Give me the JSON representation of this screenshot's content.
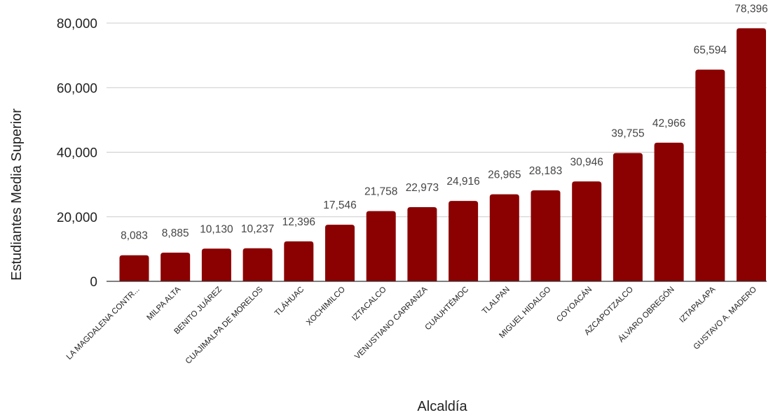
{
  "chart_data": {
    "type": "bar",
    "xlabel": "Alcaldía",
    "ylabel": "Estudiantes Media Superior",
    "ylim": [
      0,
      80000
    ],
    "yticks": [
      0,
      20000,
      40000,
      60000,
      80000
    ],
    "ytick_labels": [
      "0",
      "20,000",
      "40,000",
      "60,000",
      "80,000"
    ],
    "grid": true,
    "bar_color": "#8b0000",
    "categories": [
      "LA MAGDALENA CONTR...",
      "MILPA ALTA",
      "BENITO JUÁREZ",
      "CUAJIMALPA DE MORELOS",
      "TLÁHUAC",
      "XOCHIMILCO",
      "IZTACALCO",
      "VENUSTIANO CARRANZA",
      "CUAUHTÉMOC",
      "TLALPAN",
      "MIGUEL HIDALGO",
      "COYOACÁN",
      "AZCAPOTZALCO",
      "ÁLVARO OBREGÓN",
      "IZTAPALAPA",
      "GUSTAVO A. MADERO"
    ],
    "values": [
      8083,
      8885,
      10130,
      10237,
      12396,
      17546,
      21758,
      22973,
      24916,
      26965,
      28183,
      30946,
      39755,
      42966,
      65594,
      78396
    ],
    "data_labels": [
      "8,083",
      "8,885",
      "10,130",
      "10,237",
      "12,396",
      "17,546",
      "21,758",
      "22,973",
      "24,916",
      "26,965",
      "28,183",
      "30,946",
      "39,755",
      "42,966",
      "65,594",
      "78,396"
    ]
  }
}
